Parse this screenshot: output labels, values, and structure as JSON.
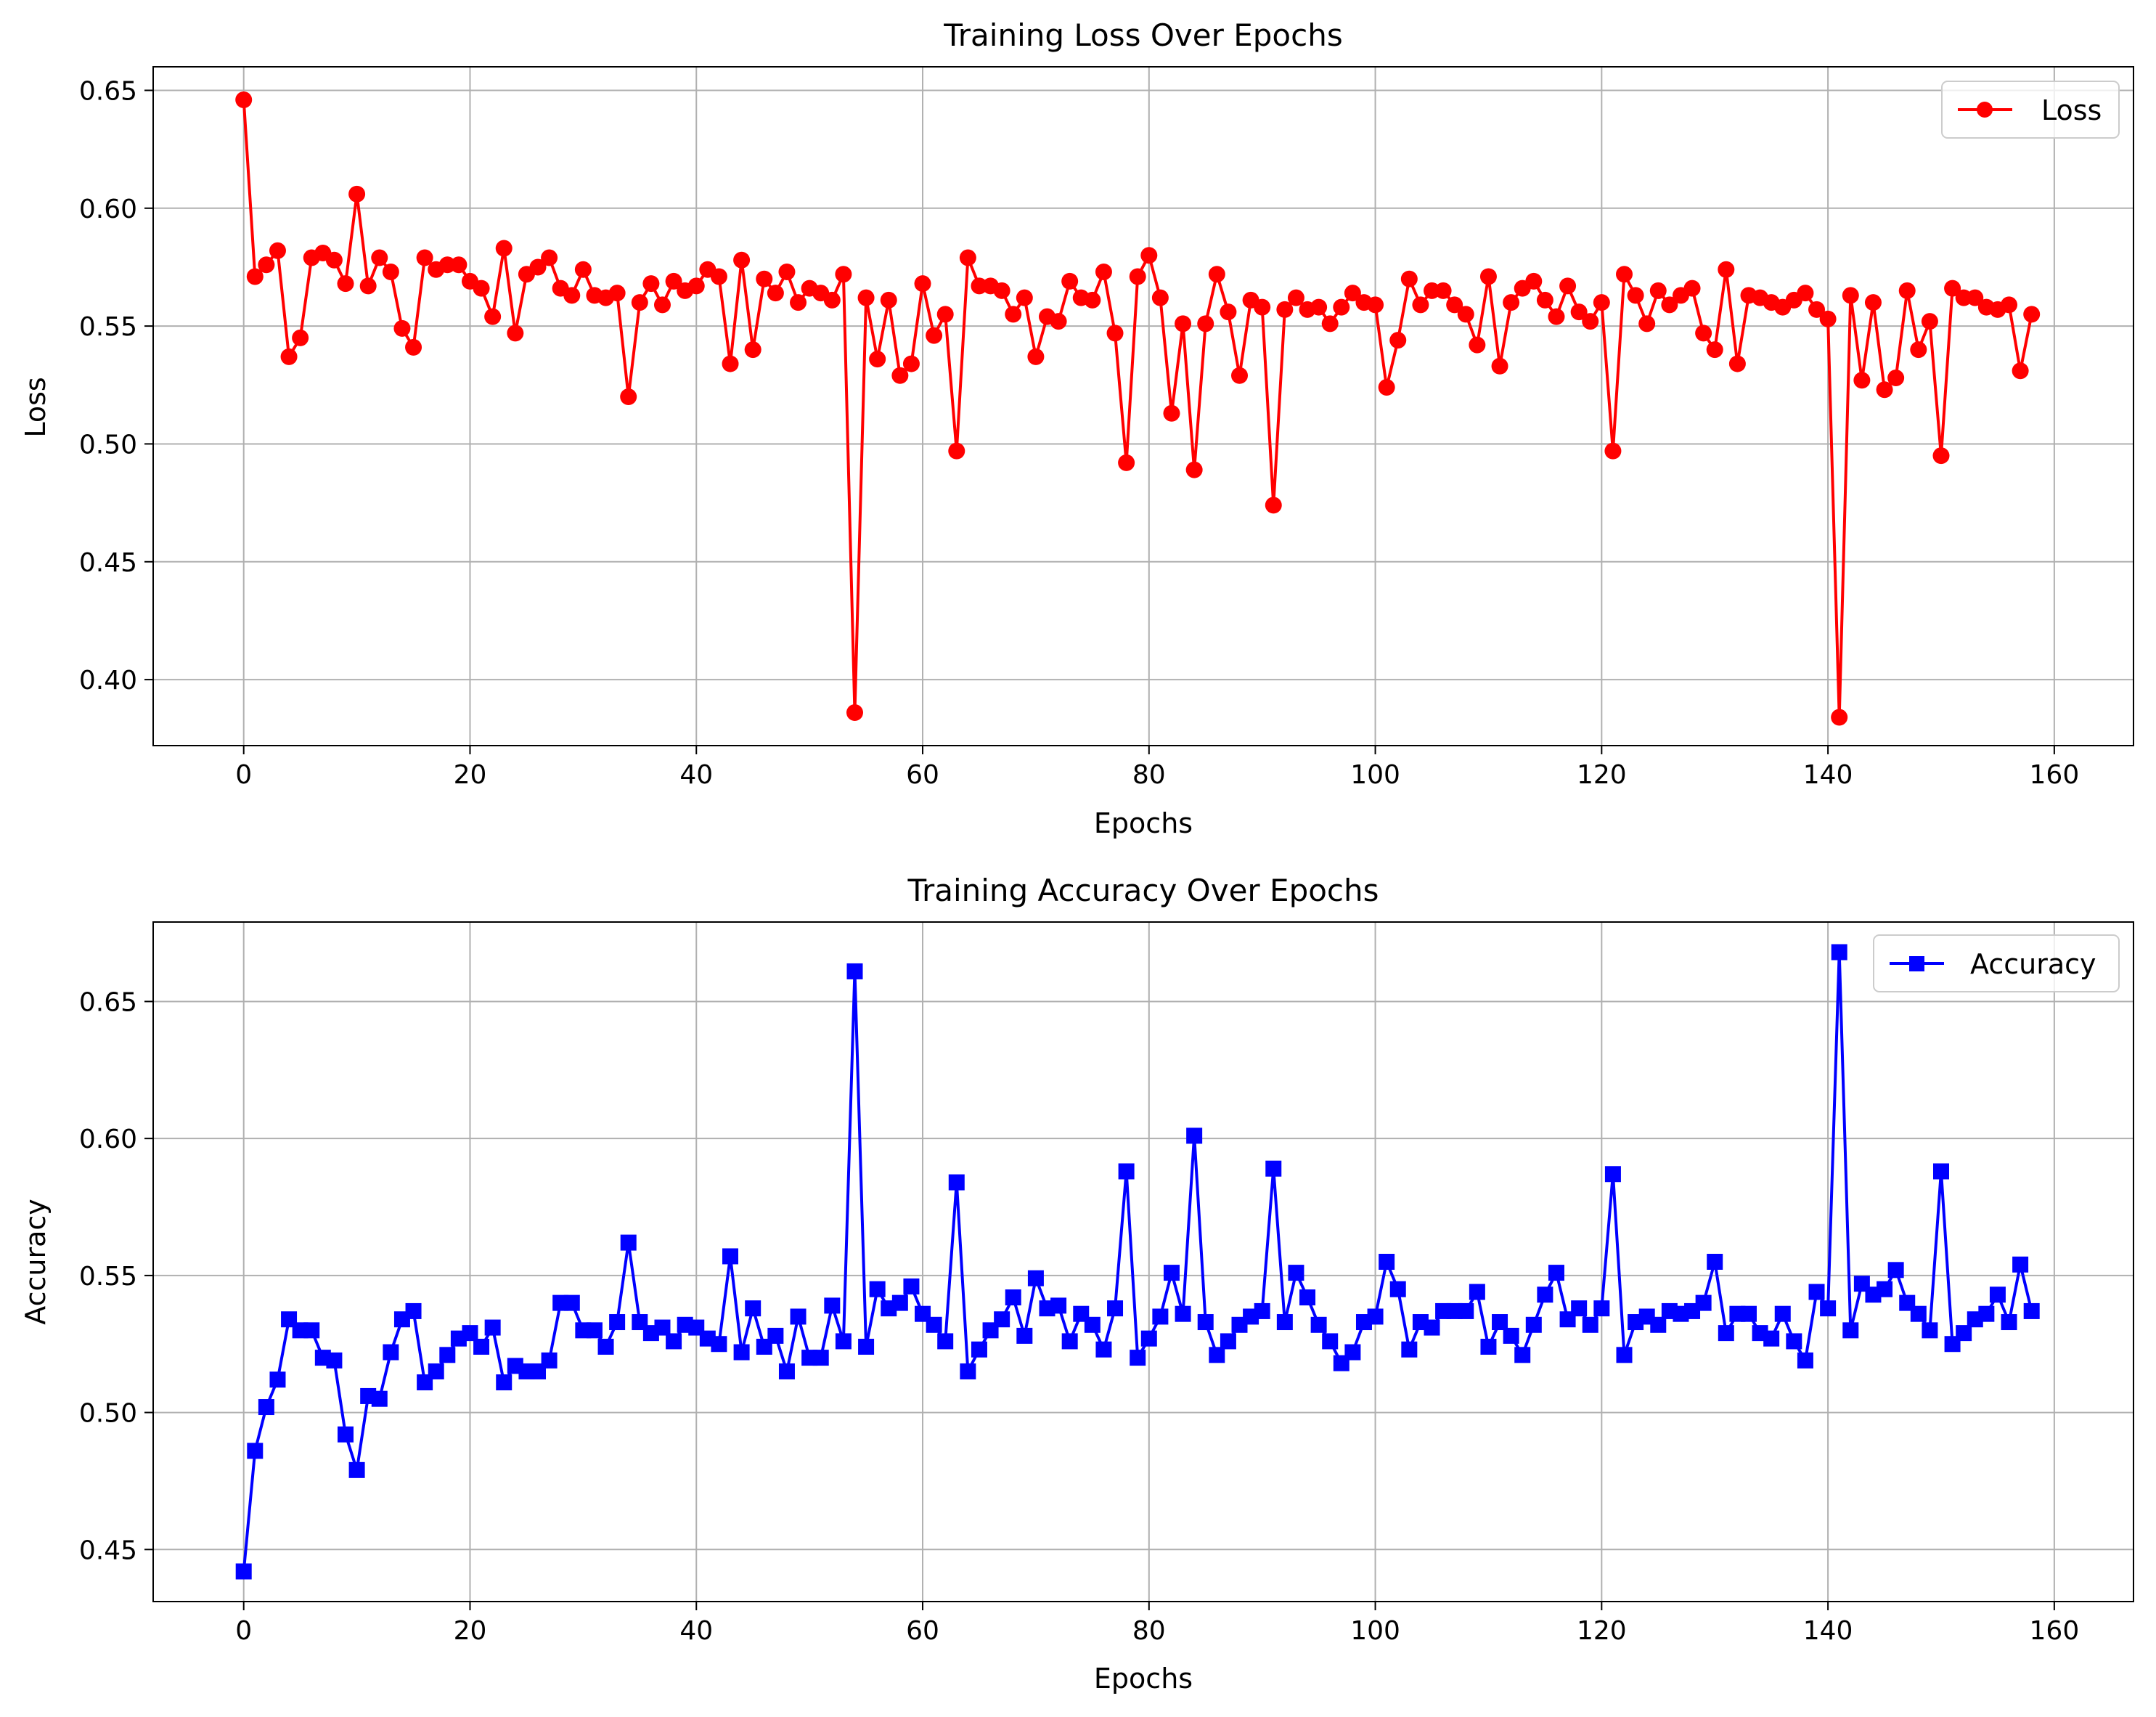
{
  "colors": {
    "loss": "#ff0000",
    "accuracy": "#0000ff",
    "grid": "#b0b0b0",
    "axis": "#000000"
  },
  "chart_data": [
    {
      "type": "line",
      "title": "Training Loss Over Epochs",
      "xlabel": "Epochs",
      "ylabel": "Loss",
      "xlim": [
        -8,
        167
      ],
      "ylim": [
        0.372,
        0.66
      ],
      "xticks": [
        0,
        20,
        40,
        60,
        80,
        100,
        120,
        140,
        160
      ],
      "xtick_labels": [
        "0",
        "20",
        "40",
        "60",
        "80",
        "100",
        "120",
        "140",
        "160"
      ],
      "yticks": [
        0.4,
        0.45,
        0.5,
        0.55,
        0.6,
        0.65
      ],
      "ytick_labels": [
        "0.40",
        "0.45",
        "0.50",
        "0.55",
        "0.60",
        "0.65"
      ],
      "grid": true,
      "legend_position": "top-right",
      "series": [
        {
          "name": "Loss",
          "marker": "circle",
          "color": "#ff0000",
          "values": [
            0.646,
            0.571,
            0.576,
            0.582,
            0.537,
            0.545,
            0.579,
            0.581,
            0.578,
            0.568,
            0.606,
            0.567,
            0.579,
            0.573,
            0.549,
            0.541,
            0.579,
            0.574,
            0.576,
            0.576,
            0.569,
            0.566,
            0.554,
            0.583,
            0.547,
            0.572,
            0.575,
            0.579,
            0.566,
            0.563,
            0.574,
            0.563,
            0.562,
            0.564,
            0.52,
            0.56,
            0.568,
            0.559,
            0.569,
            0.565,
            0.567,
            0.574,
            0.571,
            0.534,
            0.578,
            0.54,
            0.57,
            0.564,
            0.573,
            0.56,
            0.566,
            0.564,
            0.561,
            0.572,
            0.386,
            0.562,
            0.536,
            0.561,
            0.529,
            0.534,
            0.568,
            0.546,
            0.555,
            0.497,
            0.579,
            0.567,
            0.567,
            0.565,
            0.555,
            0.562,
            0.537,
            0.554,
            0.552,
            0.569,
            0.562,
            0.561,
            0.573,
            0.547,
            0.492,
            0.571,
            0.58,
            0.562,
            0.513,
            0.551,
            0.489,
            0.551,
            0.572,
            0.556,
            0.529,
            0.561,
            0.558,
            0.474,
            0.557,
            0.562,
            0.557,
            0.558,
            0.551,
            0.558,
            0.564,
            0.56,
            0.559,
            0.524,
            0.544,
            0.57,
            0.559,
            0.565,
            0.565,
            0.559,
            0.555,
            0.542,
            0.571,
            0.533,
            0.56,
            0.566,
            0.569,
            0.561,
            0.554,
            0.567,
            0.556,
            0.552,
            0.56,
            0.497,
            0.572,
            0.563,
            0.551,
            0.565,
            0.559,
            0.563,
            0.566,
            0.547,
            0.54,
            0.574,
            0.534,
            0.563,
            0.562,
            0.56,
            0.558,
            0.561,
            0.564,
            0.557,
            0.553,
            0.384,
            0.563,
            0.527,
            0.56,
            0.523,
            0.528,
            0.565,
            0.54,
            0.552,
            0.495,
            0.566,
            0.562,
            0.562,
            0.558,
            0.557,
            0.559,
            0.531,
            0.555
          ]
        }
      ]
    },
    {
      "type": "line",
      "title": "Training Accuracy Over Epochs",
      "xlabel": "Epochs",
      "ylabel": "Accuracy",
      "xlim": [
        -8,
        167
      ],
      "ylim": [
        0.431,
        0.679
      ],
      "xticks": [
        0,
        20,
        40,
        60,
        80,
        100,
        120,
        140,
        160
      ],
      "xtick_labels": [
        "0",
        "20",
        "40",
        "60",
        "80",
        "100",
        "120",
        "140",
        "160"
      ],
      "yticks": [
        0.45,
        0.5,
        0.55,
        0.6,
        0.65
      ],
      "ytick_labels": [
        "0.45",
        "0.50",
        "0.55",
        "0.60",
        "0.65"
      ],
      "grid": true,
      "legend_position": "top-right",
      "series": [
        {
          "name": "Accuracy",
          "marker": "square",
          "color": "#0000ff",
          "values": [
            0.442,
            0.486,
            0.502,
            0.512,
            0.534,
            0.53,
            0.53,
            0.52,
            0.519,
            0.492,
            0.479,
            0.506,
            0.505,
            0.522,
            0.534,
            0.537,
            0.511,
            0.515,
            0.521,
            0.527,
            0.529,
            0.524,
            0.531,
            0.511,
            0.517,
            0.515,
            0.515,
            0.519,
            0.54,
            0.54,
            0.53,
            0.53,
            0.524,
            0.533,
            0.562,
            0.533,
            0.529,
            0.531,
            0.526,
            0.532,
            0.531,
            0.527,
            0.525,
            0.557,
            0.522,
            0.538,
            0.524,
            0.528,
            0.515,
            0.535,
            0.52,
            0.52,
            0.539,
            0.526,
            0.661,
            0.524,
            0.545,
            0.538,
            0.54,
            0.546,
            0.536,
            0.532,
            0.526,
            0.584,
            0.515,
            0.523,
            0.53,
            0.534,
            0.542,
            0.528,
            0.549,
            0.538,
            0.539,
            0.526,
            0.536,
            0.532,
            0.523,
            0.538,
            0.588,
            0.52,
            0.527,
            0.535,
            0.551,
            0.536,
            0.601,
            0.533,
            0.521,
            0.526,
            0.532,
            0.535,
            0.537,
            0.589,
            0.533,
            0.551,
            0.542,
            0.532,
            0.526,
            0.518,
            0.522,
            0.533,
            0.535,
            0.555,
            0.545,
            0.523,
            0.533,
            0.531,
            0.537,
            0.537,
            0.537,
            0.544,
            0.524,
            0.533,
            0.528,
            0.521,
            0.532,
            0.543,
            0.551,
            0.534,
            0.538,
            0.532,
            0.538,
            0.587,
            0.521,
            0.533,
            0.535,
            0.532,
            0.537,
            0.536,
            0.537,
            0.54,
            0.555,
            0.529,
            0.536,
            0.536,
            0.529,
            0.527,
            0.536,
            0.526,
            0.519,
            0.544,
            0.538,
            0.668,
            0.53,
            0.547,
            0.543,
            0.545,
            0.552,
            0.54,
            0.536,
            0.53,
            0.588,
            0.525,
            0.529,
            0.534,
            0.536,
            0.543,
            0.533,
            0.554,
            0.537
          ]
        }
      ]
    }
  ]
}
